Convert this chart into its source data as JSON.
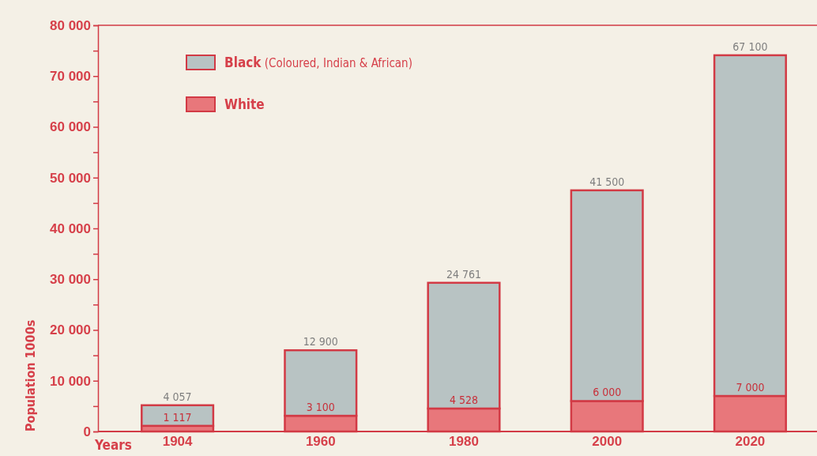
{
  "chart_data": {
    "type": "bar",
    "stacked": true,
    "xlabel": "Years",
    "ylabel": "Population 1000s",
    "categories": [
      "1904",
      "1960",
      "1980",
      "2000",
      "2020"
    ],
    "series": [
      {
        "name": "White",
        "color": "#e8777b",
        "values": [
          1117,
          3100,
          4528,
          6000,
          7000
        ],
        "value_labels": [
          "1 117",
          "3 100",
          "4 528",
          "6 000",
          "7 000"
        ]
      },
      {
        "name": "Black (Coloured, Indian & African)",
        "color": "#b8c3c3",
        "values": [
          4057,
          12900,
          24761,
          41500,
          67100
        ],
        "value_labels": [
          "4 057",
          "12 900",
          "24 761",
          "41 500",
          "67 100"
        ]
      }
    ],
    "ylim": [
      0,
      80000
    ],
    "yticks": [
      {
        "value": 0,
        "label": "0"
      },
      {
        "value": 5000,
        "label": null
      },
      {
        "value": 10000,
        "label": "10 000"
      },
      {
        "value": 15000,
        "label": null
      },
      {
        "value": 20000,
        "label": "20 000"
      },
      {
        "value": 25000,
        "label": null
      },
      {
        "value": 30000,
        "label": "30 000"
      },
      {
        "value": 35000,
        "label": null
      },
      {
        "value": 40000,
        "label": "40 000"
      },
      {
        "value": 45000,
        "label": null
      },
      {
        "value": 50000,
        "label": "50 000"
      },
      {
        "value": 55000,
        "label": null
      },
      {
        "value": 60000,
        "label": "60 000"
      },
      {
        "value": 65000,
        "label": null
      },
      {
        "value": 70000,
        "label": "70 000"
      },
      {
        "value": 75000,
        "label": null
      },
      {
        "value": 80000,
        "label": "80 000"
      }
    ],
    "legend": "top left",
    "grid": false
  }
}
